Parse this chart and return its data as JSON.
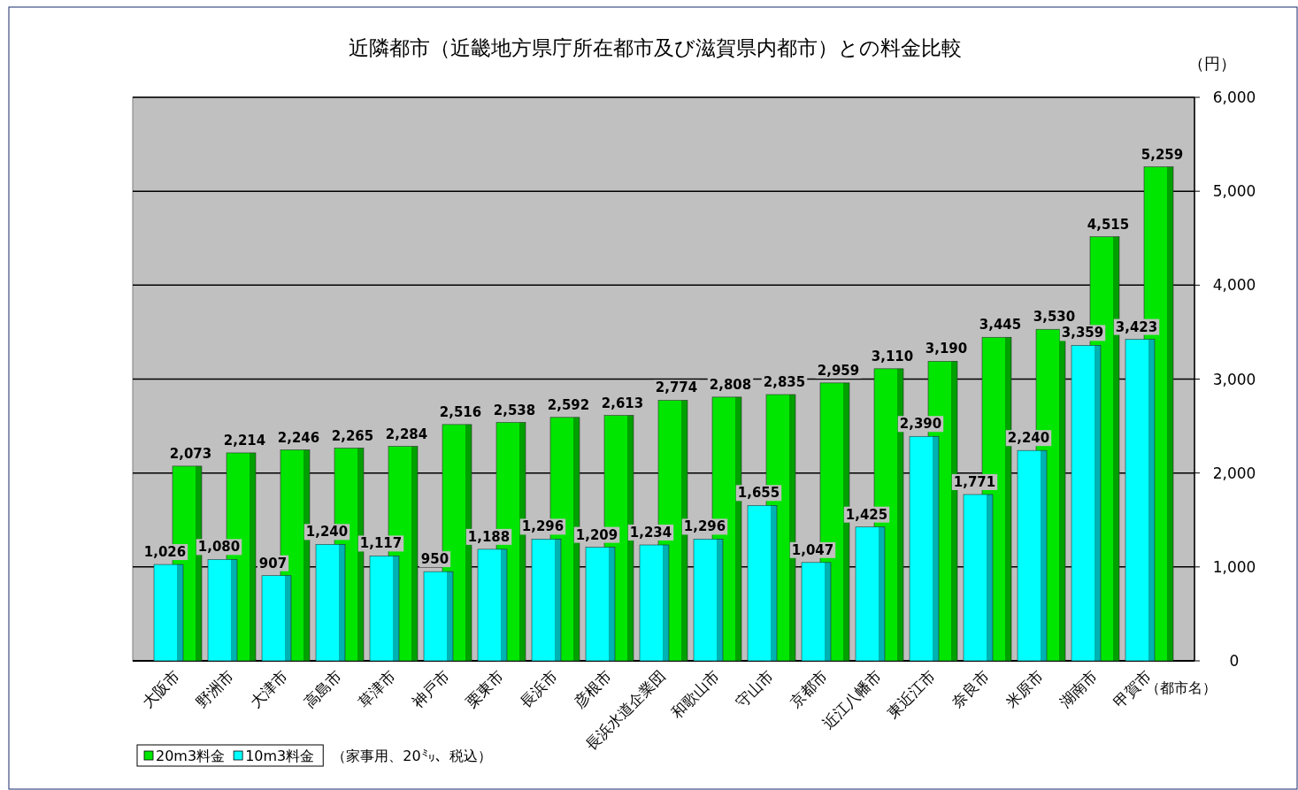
{
  "chart_data": {
    "type": "bar",
    "title": "近隣都市（近畿地方県庁所在都市及び滋賀県内都市）との料金比較",
    "ylabel": "（円）",
    "xlabel": "（都市名）",
    "categories": [
      "大阪市",
      "野洲市",
      "大津市",
      "高島市",
      "草津市",
      "神戸市",
      "栗東市",
      "長浜市",
      "彦根市",
      "長浜水道企業団",
      "和歌山市",
      "守山市",
      "京都市",
      "近江八幡市",
      "東近江市",
      "奈良市",
      "米原市",
      "湖南市",
      "甲賀市"
    ],
    "series": [
      {
        "name": "20m3料金",
        "color": "#00e600",
        "values": [
          2073,
          2214,
          2246,
          2265,
          2284,
          2516,
          2538,
          2592,
          2613,
          2774,
          2808,
          2835,
          2959,
          3110,
          3190,
          3445,
          3530,
          4515,
          5259
        ],
        "value_labels": [
          "2,073",
          "2,214",
          "2,246",
          "2,265",
          "2,284",
          "2,516",
          "2,538",
          "2,592",
          "2,613",
          "2,774",
          "2,808",
          "2,835",
          "2,959",
          "3,110",
          "3,190",
          "3,445",
          "3,530",
          "4,515",
          "5,259"
        ]
      },
      {
        "name": "10m3料金",
        "color": "#00ffff",
        "values": [
          1026,
          1080,
          907,
          1240,
          1117,
          950,
          1188,
          1296,
          1209,
          1234,
          1296,
          1655,
          1047,
          1425,
          2390,
          1771,
          2240,
          3359,
          3423
        ],
        "value_labels": [
          "1,026",
          "1,080",
          "907",
          "1,240",
          "1,117",
          "950",
          "1,188",
          "1,296",
          "1,209",
          "1,234",
          "1,296",
          "1,655",
          "1,047",
          "1,425",
          "2,390",
          "1,771",
          "2,240",
          "3,359",
          "3,423"
        ]
      }
    ],
    "ylim": [
      0,
      6000
    ],
    "yticks": [
      0,
      {
        "value": 1000,
        "label": "1,000"
      },
      {
        "value": 2000,
        "label": "2,000"
      },
      {
        "value": 3000,
        "label": "3,000"
      },
      {
        "value": 4000,
        "label": "4,000"
      },
      {
        "value": 5000,
        "label": "5,000"
      },
      {
        "value": 6000,
        "label": "6,000"
      }
    ],
    "grid": "y",
    "legend": "bottom left",
    "annotations": [
      "（家事用、20㍉、税込）"
    ]
  }
}
